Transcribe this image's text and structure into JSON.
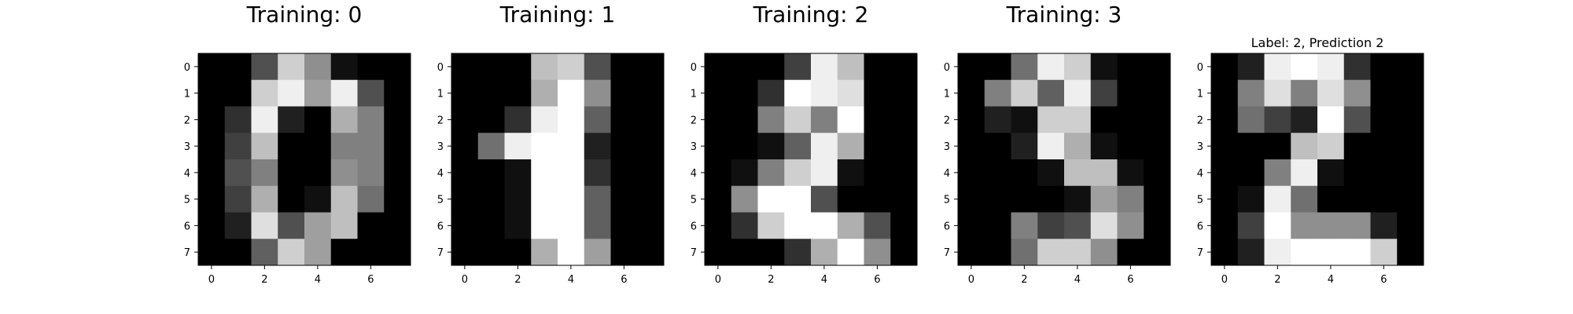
{
  "chart_data": [
    {
      "type": "heatmap",
      "title": "Training: 0",
      "colormap": "gray",
      "value_range": [
        0,
        16
      ],
      "x_ticks": [
        0,
        2,
        4,
        6
      ],
      "y_ticks": [
        0,
        1,
        2,
        3,
        4,
        5,
        6,
        7
      ],
      "grid": false,
      "pixels": [
        [
          0,
          0,
          5,
          13,
          9,
          1,
          0,
          0
        ],
        [
          0,
          0,
          13,
          15,
          10,
          15,
          5,
          0
        ],
        [
          0,
          3,
          15,
          2,
          0,
          11,
          8,
          0
        ],
        [
          0,
          4,
          12,
          0,
          0,
          8,
          8,
          0
        ],
        [
          0,
          5,
          8,
          0,
          0,
          9,
          8,
          0
        ],
        [
          0,
          4,
          11,
          0,
          1,
          12,
          7,
          0
        ],
        [
          0,
          2,
          14,
          5,
          10,
          12,
          0,
          0
        ],
        [
          0,
          0,
          6,
          13,
          10,
          0,
          0,
          0
        ]
      ]
    },
    {
      "type": "heatmap",
      "title": "Training: 1",
      "colormap": "gray",
      "value_range": [
        0,
        16
      ],
      "x_ticks": [
        0,
        2,
        4,
        6
      ],
      "y_ticks": [
        0,
        1,
        2,
        3,
        4,
        5,
        6,
        7
      ],
      "grid": false,
      "pixels": [
        [
          0,
          0,
          0,
          12,
          13,
          5,
          0,
          0
        ],
        [
          0,
          0,
          0,
          11,
          16,
          9,
          0,
          0
        ],
        [
          0,
          0,
          3,
          15,
          16,
          6,
          0,
          0
        ],
        [
          0,
          7,
          15,
          16,
          16,
          2,
          0,
          0
        ],
        [
          0,
          0,
          1,
          16,
          16,
          3,
          0,
          0
        ],
        [
          0,
          0,
          1,
          16,
          16,
          6,
          0,
          0
        ],
        [
          0,
          0,
          1,
          16,
          16,
          6,
          0,
          0
        ],
        [
          0,
          0,
          0,
          11,
          16,
          10,
          0,
          0
        ]
      ]
    },
    {
      "type": "heatmap",
      "title": "Training: 2",
      "colormap": "gray",
      "value_range": [
        0,
        16
      ],
      "x_ticks": [
        0,
        2,
        4,
        6
      ],
      "y_ticks": [
        0,
        1,
        2,
        3,
        4,
        5,
        6,
        7
      ],
      "grid": false,
      "pixels": [
        [
          0,
          0,
          0,
          4,
          15,
          12,
          0,
          0
        ],
        [
          0,
          0,
          3,
          16,
          15,
          14,
          0,
          0
        ],
        [
          0,
          0,
          8,
          13,
          8,
          16,
          0,
          0
        ],
        [
          0,
          0,
          1,
          6,
          15,
          11,
          0,
          0
        ],
        [
          0,
          1,
          8,
          13,
          15,
          1,
          0,
          0
        ],
        [
          0,
          9,
          16,
          16,
          5,
          0,
          0,
          0
        ],
        [
          0,
          3,
          13,
          16,
          16,
          11,
          5,
          0
        ],
        [
          0,
          0,
          0,
          3,
          11,
          16,
          9,
          0
        ]
      ]
    },
    {
      "type": "heatmap",
      "title": "Training: 3",
      "colormap": "gray",
      "value_range": [
        0,
        16
      ],
      "x_ticks": [
        0,
        2,
        4,
        6
      ],
      "y_ticks": [
        0,
        1,
        2,
        3,
        4,
        5,
        6,
        7
      ],
      "grid": false,
      "pixels": [
        [
          0,
          0,
          7,
          15,
          13,
          1,
          0,
          0
        ],
        [
          0,
          8,
          13,
          6,
          15,
          4,
          0,
          0
        ],
        [
          0,
          2,
          1,
          13,
          13,
          0,
          0,
          0
        ],
        [
          0,
          0,
          2,
          15,
          11,
          1,
          0,
          0
        ],
        [
          0,
          0,
          0,
          1,
          12,
          12,
          1,
          0
        ],
        [
          0,
          0,
          0,
          0,
          1,
          10,
          8,
          0
        ],
        [
          0,
          0,
          8,
          4,
          5,
          14,
          9,
          0
        ],
        [
          0,
          0,
          7,
          13,
          13,
          9,
          0,
          0
        ]
      ]
    },
    {
      "type": "heatmap",
      "title": "Label: 2, Prediction 2",
      "colormap": "gray",
      "value_range": [
        0,
        16
      ],
      "x_ticks": [
        0,
        2,
        4,
        6
      ],
      "y_ticks": [
        0,
        1,
        2,
        3,
        4,
        5,
        6,
        7
      ],
      "grid": false,
      "pixels": [
        [
          0,
          2,
          15,
          16,
          15,
          3,
          0,
          0
        ],
        [
          0,
          8,
          14,
          8,
          14,
          9,
          0,
          0
        ],
        [
          0,
          7,
          4,
          2,
          16,
          5,
          0,
          0
        ],
        [
          0,
          0,
          0,
          12,
          13,
          0,
          0,
          0
        ],
        [
          0,
          0,
          8,
          15,
          1,
          0,
          0,
          0
        ],
        [
          0,
          1,
          15,
          7,
          0,
          0,
          0,
          0
        ],
        [
          0,
          4,
          16,
          9,
          9,
          9,
          2,
          0
        ],
        [
          0,
          2,
          15,
          16,
          16,
          16,
          13,
          0
        ]
      ]
    }
  ]
}
